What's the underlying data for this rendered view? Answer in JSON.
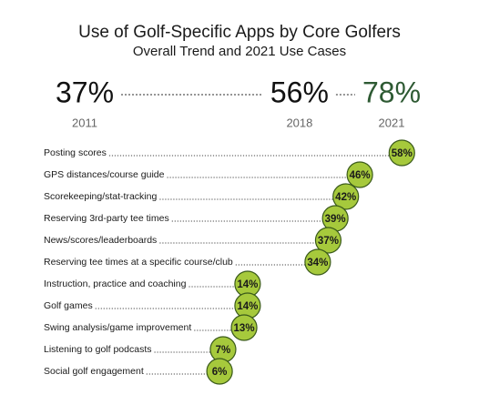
{
  "chart_data": [
    {
      "type": "trend",
      "title": "Use of Golf-Specific Apps by Core Golfers",
      "subtitle": "Overall Trend and 2021 Use Cases",
      "x": [
        2011,
        2018,
        2021
      ],
      "values": [
        37,
        56,
        78
      ],
      "value_labels": [
        "37%",
        "56%",
        "78%"
      ],
      "colors": [
        "#111111",
        "#111111",
        "#2e5a33"
      ]
    },
    {
      "type": "dot",
      "categories": [
        "Posting scores",
        "GPS distances/course guide",
        "Scorekeeping/stat-tracking",
        "Reserving 3rd-party tee times",
        "News/scores/leaderboards",
        "Reserving tee times at a specific course/club",
        "Instruction, practice and coaching",
        "Golf games",
        "Swing analysis/game improvement",
        "Listening to golf podcasts",
        "Social golf engagement"
      ],
      "values": [
        58,
        46,
        42,
        39,
        37,
        34,
        14,
        14,
        13,
        7,
        6
      ],
      "value_labels": [
        "58%",
        "46%",
        "42%",
        "39%",
        "37%",
        "34%",
        "14%",
        "14%",
        "13%",
        "7%",
        "6%"
      ],
      "color": "#a6c93c",
      "edge_color": "#3a5a1a"
    }
  ]
}
